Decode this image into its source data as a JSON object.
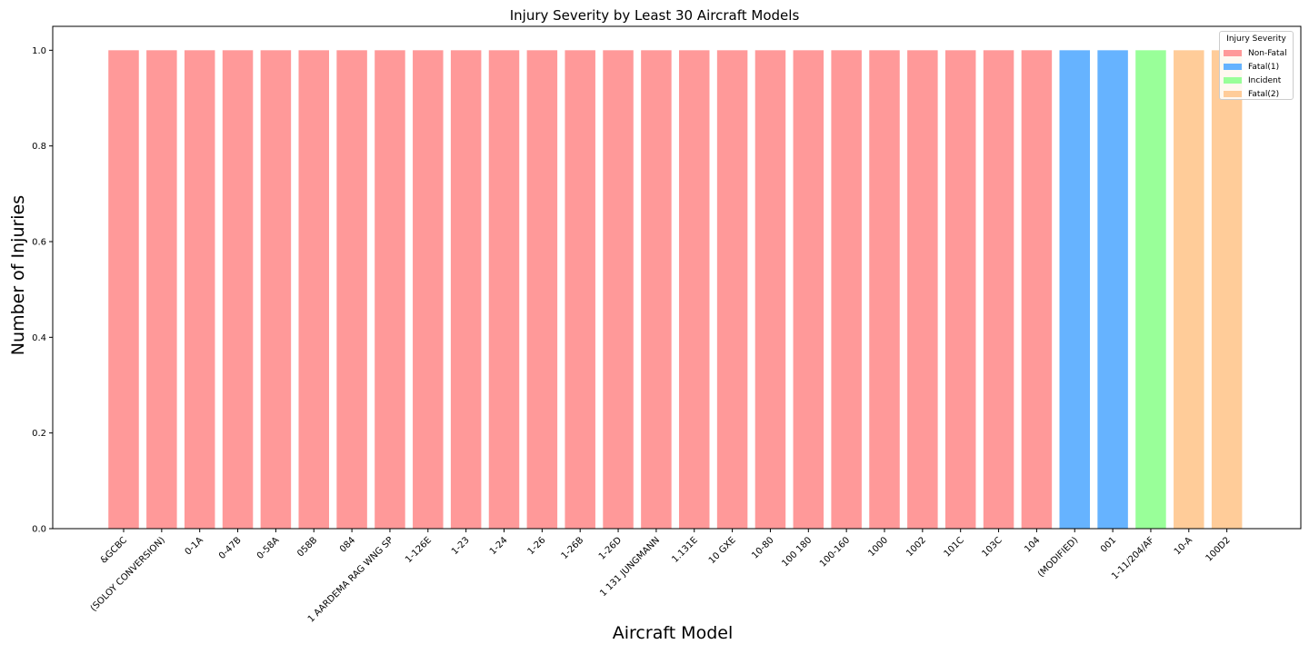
{
  "chart_data": {
    "type": "bar",
    "title": "Injury Severity by Least 30 Aircraft Models",
    "xlabel": "Aircraft Model",
    "ylabel": "Number of Injuries",
    "ylim": [
      0,
      1.05
    ],
    "yticks": [
      "0.0",
      "0.2",
      "0.4",
      "0.6",
      "0.8",
      "1.0"
    ],
    "ytick_values": [
      0.0,
      0.2,
      0.4,
      0.6,
      0.8,
      1.0
    ],
    "grid": false,
    "legend_position": "top-right",
    "categories": [
      "&GCBC",
      "(SOLOY CONVERSION)",
      "0-1A",
      "0-47B",
      "0-58A",
      "058B",
      "084",
      "1 AARDEMA RAG WNG SP",
      "1-126E",
      "1-23",
      "1-24",
      "1-26",
      "1-26B",
      "1-26D",
      "1 131 JUNGMANN",
      "1.131E",
      "10 GXE",
      "10-80",
      "100 180",
      "100-160",
      "1000",
      "1002",
      "101C",
      "103C",
      "104",
      "(MODIFIED)",
      "001",
      "1-11/204/AF",
      "10-A",
      "100D2"
    ],
    "values": [
      1,
      1,
      1,
      1,
      1,
      1,
      1,
      1,
      1,
      1,
      1,
      1,
      1,
      1,
      1,
      1,
      1,
      1,
      1,
      1,
      1,
      1,
      1,
      1,
      1,
      1,
      1,
      1,
      1,
      1
    ],
    "severity": [
      "Non-Fatal",
      "Non-Fatal",
      "Non-Fatal",
      "Non-Fatal",
      "Non-Fatal",
      "Non-Fatal",
      "Non-Fatal",
      "Non-Fatal",
      "Non-Fatal",
      "Non-Fatal",
      "Non-Fatal",
      "Non-Fatal",
      "Non-Fatal",
      "Non-Fatal",
      "Non-Fatal",
      "Non-Fatal",
      "Non-Fatal",
      "Non-Fatal",
      "Non-Fatal",
      "Non-Fatal",
      "Non-Fatal",
      "Non-Fatal",
      "Non-Fatal",
      "Non-Fatal",
      "Non-Fatal",
      "Fatal(1)",
      "Fatal(1)",
      "Incident",
      "Fatal(2)",
      "Fatal(2)"
    ],
    "legend": {
      "title": "Injury Severity",
      "entries": [
        {
          "name": "Non-Fatal",
          "color": "#ff9999"
        },
        {
          "name": "Fatal(1)",
          "color": "#66b3ff"
        },
        {
          "name": "Incident",
          "color": "#99ff99"
        },
        {
          "name": "Fatal(2)",
          "color": "#ffcc99"
        }
      ]
    }
  }
}
